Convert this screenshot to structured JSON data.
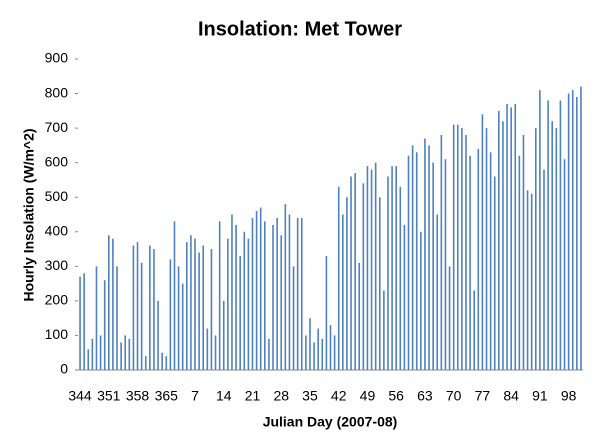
{
  "chart_data": {
    "type": "bar",
    "title": "Insolation: Met Tower",
    "x_label": "Julian Day (2007-08)",
    "y_label": "Hourly Insolation (W/m^2)",
    "categories": [
      "344",
      null,
      null,
      null,
      null,
      null,
      null,
      "351",
      null,
      null,
      null,
      null,
      null,
      null,
      "358",
      null,
      null,
      null,
      null,
      null,
      null,
      "365",
      null,
      null,
      null,
      null,
      null,
      null,
      "7",
      null,
      null,
      null,
      null,
      null,
      null,
      "14",
      null,
      null,
      null,
      null,
      null,
      null,
      "21",
      null,
      null,
      null,
      null,
      null,
      null,
      "28",
      null,
      null,
      null,
      null,
      null,
      null,
      "35",
      null,
      null,
      null,
      null,
      null,
      null,
      "42",
      null,
      null,
      null,
      null,
      null,
      null,
      "49",
      null,
      null,
      null,
      null,
      null,
      null,
      "56",
      null,
      null,
      null,
      null,
      null,
      null,
      "63",
      null,
      null,
      null,
      null,
      null,
      null,
      "70",
      null,
      null,
      null,
      null,
      null,
      null,
      "77",
      null,
      null,
      null,
      null,
      null,
      null,
      "84",
      null,
      null,
      null,
      null,
      null,
      null,
      "91",
      null,
      null,
      null,
      null,
      null,
      null,
      "98",
      null,
      null,
      null
    ],
    "values": [
      270,
      280,
      60,
      90,
      300,
      100,
      260,
      390,
      380,
      300,
      80,
      100,
      90,
      360,
      370,
      310,
      40,
      360,
      350,
      200,
      50,
      40,
      320,
      430,
      300,
      250,
      370,
      390,
      380,
      340,
      360,
      120,
      350,
      100,
      430,
      200,
      380,
      450,
      420,
      330,
      400,
      380,
      440,
      460,
      470,
      430,
      90,
      420,
      440,
      390,
      480,
      450,
      300,
      440,
      440,
      100,
      150,
      80,
      120,
      90,
      330,
      130,
      100,
      530,
      450,
      500,
      560,
      570,
      310,
      540,
      590,
      580,
      600,
      500,
      230,
      560,
      590,
      590,
      530,
      420,
      620,
      650,
      630,
      400,
      670,
      650,
      600,
      450,
      680,
      610,
      300,
      710,
      710,
      700,
      680,
      620,
      230,
      640,
      740,
      700,
      630,
      560,
      750,
      720,
      770,
      760,
      770,
      620,
      680,
      520,
      510,
      700,
      810,
      580,
      780,
      720,
      700,
      780,
      610,
      800,
      810,
      790,
      820
    ],
    "color": "#4f81bd",
    "ylim": [
      0,
      900
    ],
    "yticks": [
      0,
      100,
      200,
      300,
      400,
      500,
      600,
      700,
      800,
      900
    ],
    "grid": false
  }
}
